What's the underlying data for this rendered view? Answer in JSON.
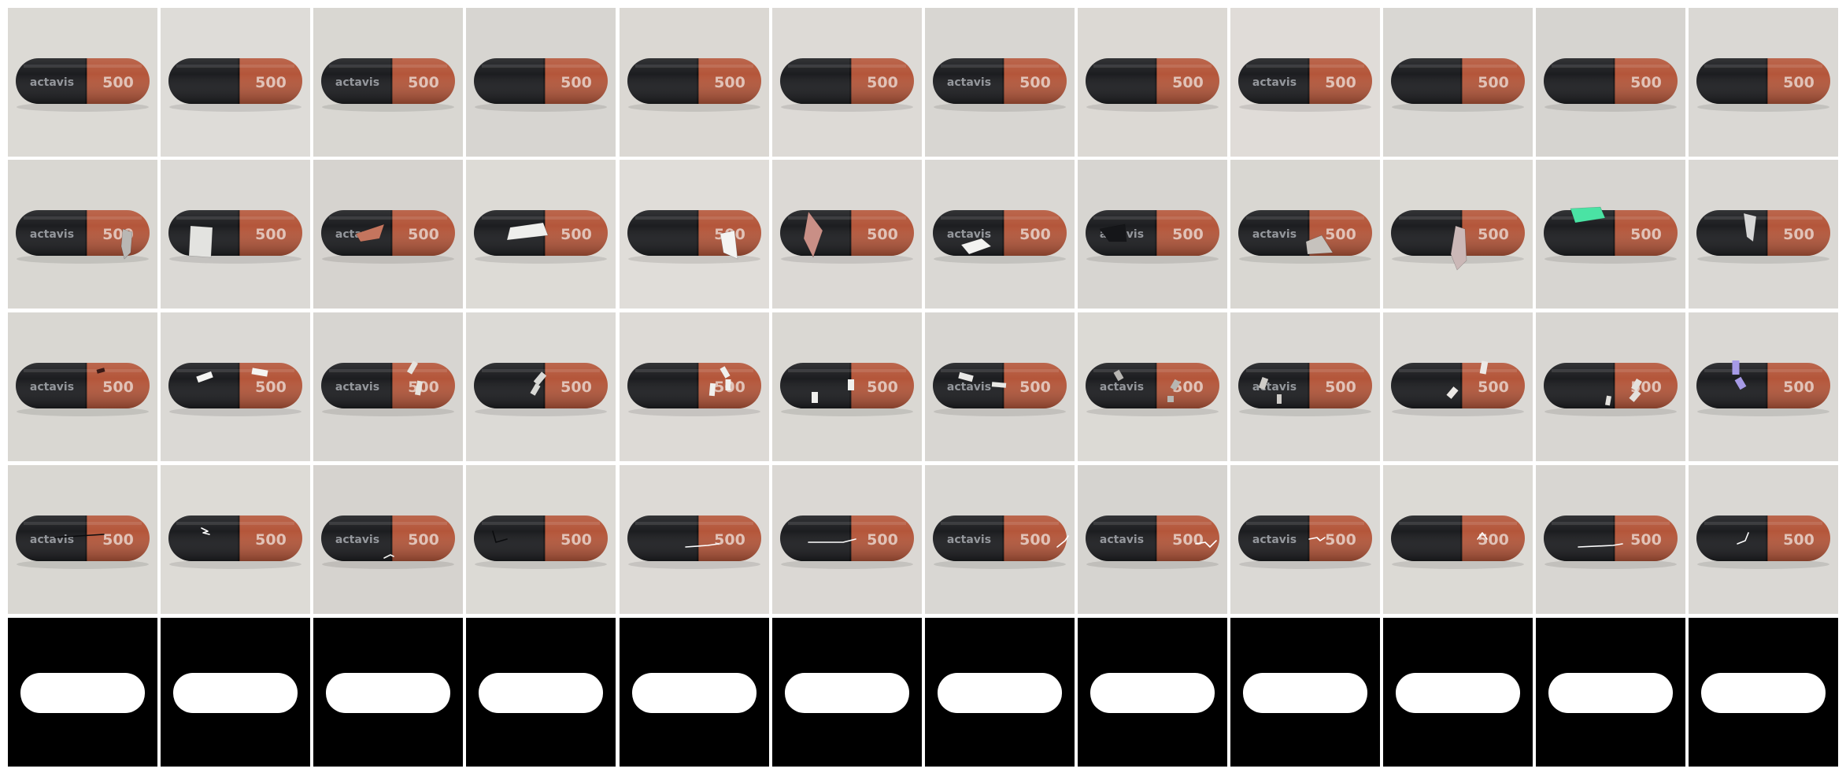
{
  "grid": {
    "rows": 5,
    "cols": 12
  },
  "capsule": {
    "cap_color": "#1c1d20",
    "body_color": "#b4563a",
    "print_text": "500",
    "logo_text": "actavis",
    "print_color": "#e9d4cc"
  },
  "rows": [
    {
      "kind": "normal",
      "tiles": [
        {
          "logo": true,
          "bg": "#dcdad5"
        },
        {
          "logo": false,
          "bg": "#dedcd8"
        },
        {
          "logo": true,
          "bg": "#d9d7d2"
        },
        {
          "logo": false,
          "bg": "#d7d5d1"
        },
        {
          "logo": false,
          "bg": "#dbd8d3"
        },
        {
          "logo": false,
          "bg": "#dddad6"
        },
        {
          "logo": true,
          "bg": "#d8d6d2"
        },
        {
          "logo": false,
          "bg": "#dcd9d4"
        },
        {
          "logo": true,
          "bg": "#e0dcd8"
        },
        {
          "logo": false,
          "bg": "#d9d7d3"
        },
        {
          "logo": false,
          "bg": "#d6d4d0"
        },
        {
          "logo": false,
          "bg": "#dad8d4"
        }
      ]
    },
    {
      "kind": "polygon",
      "tiles": [
        {
          "logo": true,
          "bg": "#d9d7d2",
          "color": "#b9b7b4"
        },
        {
          "logo": false,
          "bg": "#dbd9d5",
          "color": "#e3e3e0"
        },
        {
          "logo": true,
          "bg": "#d6d3cf",
          "color": "#c4755e"
        },
        {
          "logo": false,
          "bg": "#dddbd6",
          "color": "#eeeeec"
        },
        {
          "logo": false,
          "bg": "#e0ddd9",
          "color": "#f4f4f2"
        },
        {
          "logo": false,
          "bg": "#dcd9d5",
          "color": "#c98f86"
        },
        {
          "logo": true,
          "bg": "#dad8d4",
          "color": "#f3f3f1"
        },
        {
          "logo": true,
          "bg": "#d7d5d1",
          "color": "#151619"
        },
        {
          "logo": true,
          "bg": "#d9d7d2",
          "color": "#c6c2bd"
        },
        {
          "logo": false,
          "bg": "#dcdad5",
          "color": "#cbb8b7"
        },
        {
          "logo": false,
          "bg": "#d7d5d1",
          "color": "#4ae3a4"
        },
        {
          "logo": false,
          "bg": "#dad8d4",
          "color": "#d6d6d6"
        }
      ]
    },
    {
      "kind": "scratches",
      "tiles": [
        {
          "logo": true,
          "bg": "#d9d7d2",
          "color": "#3a1a16"
        },
        {
          "logo": false,
          "bg": "#dbd9d5",
          "color": "#f4f4f2"
        },
        {
          "logo": true,
          "bg": "#d7d5d1",
          "color": "#e6e3de"
        },
        {
          "logo": false,
          "bg": "#dcdad6",
          "color": "#d9d9d6"
        },
        {
          "logo": false,
          "bg": "#dddad6",
          "color": "#f0f0ee"
        },
        {
          "logo": false,
          "bg": "#dad8d3",
          "color": "#f0f0ee"
        },
        {
          "logo": true,
          "bg": "#d8d6d2",
          "color": "#e9e8e5"
        },
        {
          "logo": true,
          "bg": "#dcdad5",
          "color": "#b7b6b2"
        },
        {
          "logo": true,
          "bg": "#dad8d4",
          "color": "#cfccc8"
        },
        {
          "logo": false,
          "bg": "#dbd9d5",
          "color": "#ece9e6"
        },
        {
          "logo": false,
          "bg": "#d8d6d2",
          "color": "#e3e1dd"
        },
        {
          "logo": false,
          "bg": "#dad8d4",
          "color": "#a69ae6"
        }
      ]
    },
    {
      "kind": "cracks",
      "tiles": [
        {
          "logo": true,
          "bg": "#d9d7d2",
          "color": "#0b0c0e"
        },
        {
          "logo": false,
          "bg": "#dddbd6",
          "color": "#ffffff"
        },
        {
          "logo": true,
          "bg": "#d6d3cf",
          "color": "#f4f4f2"
        },
        {
          "logo": false,
          "bg": "#dcdad5",
          "color": "#0b0c0e"
        },
        {
          "logo": false,
          "bg": "#dddad6",
          "color": "#ffffff"
        },
        {
          "logo": false,
          "bg": "#dbd8d4",
          "color": "#ffffff"
        },
        {
          "logo": true,
          "bg": "#d9d7d3",
          "color": "#ffffff"
        },
        {
          "logo": true,
          "bg": "#d6d4d0",
          "color": "#ffffff"
        },
        {
          "logo": true,
          "bg": "#dbd9d5",
          "color": "#ffffff"
        },
        {
          "logo": false,
          "bg": "#dcdad5",
          "color": "#ffffff"
        },
        {
          "logo": false,
          "bg": "#d8d6d2",
          "color": "#ffffff"
        },
        {
          "logo": false,
          "bg": "#dad8d4",
          "color": "#ffffff"
        }
      ]
    },
    {
      "kind": "mask",
      "tiles": [
        {},
        {},
        {},
        {},
        {},
        {},
        {},
        {},
        {},
        {},
        {},
        {}
      ]
    }
  ]
}
